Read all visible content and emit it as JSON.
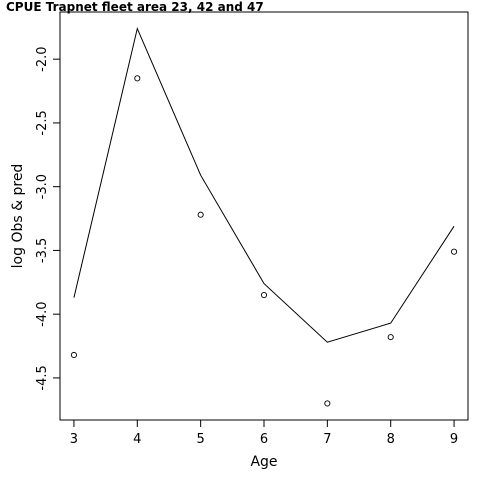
{
  "chart_data": {
    "type": "line",
    "title": "CPUE Trapnet fleet area 23, 42 and 47",
    "xlabel": "Age",
    "ylabel": "log Obs & pred",
    "x": [
      3,
      4,
      5,
      6,
      7,
      8,
      9
    ],
    "xticks": [
      3,
      4,
      5,
      6,
      7,
      8,
      9
    ],
    "xtick_labels": [
      "3",
      "4",
      "5",
      "6",
      "7",
      "8",
      "9"
    ],
    "yticks": [
      -2.0,
      -2.5,
      -3.0,
      -3.5,
      -4.0,
      -4.5
    ],
    "ytick_labels": [
      "-2.0",
      "-2.5",
      "-3.0",
      "-3.5",
      "-4.0",
      "-4.5"
    ],
    "xlim": [
      2.78,
      9.22
    ],
    "ylim": [
      -4.83,
      -1.63
    ],
    "grid": false,
    "series": [
      {
        "style": "points",
        "marker": "open-circle",
        "values": [
          -4.32,
          -2.15,
          -3.22,
          -3.85,
          -4.7,
          -4.18,
          -3.51
        ]
      },
      {
        "style": "line",
        "values": [
          -3.87,
          -1.76,
          -2.91,
          -3.76,
          -4.22,
          -4.07,
          -3.31
        ]
      }
    ]
  }
}
